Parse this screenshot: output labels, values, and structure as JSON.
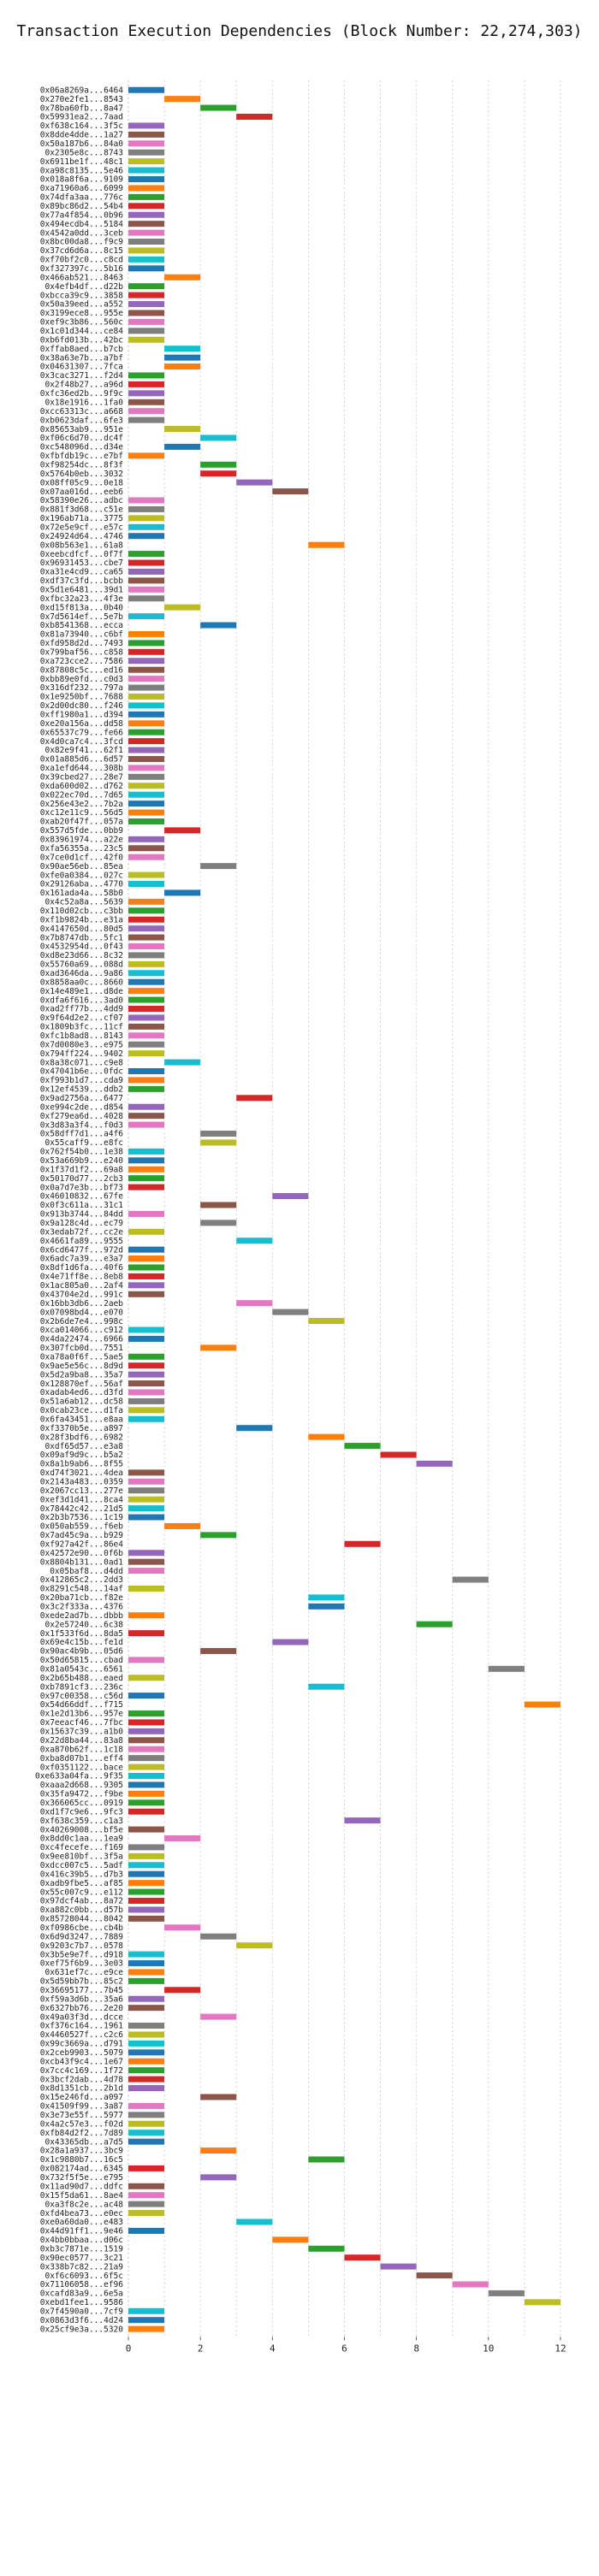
{
  "chart_data": {
    "type": "bar",
    "orientation": "horizontal-gantt",
    "title": "Transaction Execution Dependencies (Block Number: 22,274,303)",
    "xlabel": "",
    "ylabel": "",
    "xlim": [
      0,
      12.5
    ],
    "xticks": [
      0,
      2,
      4,
      6,
      8,
      10,
      12
    ],
    "grid": true,
    "palette": [
      "#1f77b4",
      "#ff7f0e",
      "#2ca02c",
      "#d62728",
      "#9467bd",
      "#8c564b",
      "#e377c2",
      "#7f7f7f",
      "#bcbd22",
      "#17becf"
    ],
    "transactions": [
      [
        "0x06a8269a...6464",
        0
      ],
      [
        "0x270e2fe1...8543",
        1
      ],
      [
        "0x78ba60fb...8a47",
        2
      ],
      [
        "0x59931ea2...7aad",
        3
      ],
      [
        "0xf638c164...3f5c",
        0
      ],
      [
        "0x8dde4dde...1a27",
        0
      ],
      [
        "0x50a187b6...84a0",
        0
      ],
      [
        "0x2305e8c...8743",
        0
      ],
      [
        "0x6911be1f...48c1",
        0
      ],
      [
        "0xa98c8135...5e46",
        0
      ],
      [
        "0x018a8f6a...9109",
        0
      ],
      [
        "0xa71960a6...6099",
        0
      ],
      [
        "0x74dfa3aa...776c",
        0
      ],
      [
        "0x89bc86d2...54b4",
        0
      ],
      [
        "0x77a4f854...0b96",
        0
      ],
      [
        "0x494ecdb4...5184",
        0
      ],
      [
        "0x4542a0dd...3ceb",
        0
      ],
      [
        "0x8bc00da8...f9c9",
        0
      ],
      [
        "0x37cd6d6a...8c15",
        0
      ],
      [
        "0xf70bf2c0...c8cd",
        0
      ],
      [
        "0xf327397c...5b16",
        0
      ],
      [
        "0x466ab521...8463",
        1
      ],
      [
        "0x4efb4df...d22b",
        0
      ],
      [
        "0xbcca39c9...3858",
        0
      ],
      [
        "0x50a39eed...a552",
        0
      ],
      [
        "0x3199ece8...955e",
        0
      ],
      [
        "0xef9c3b86...560c",
        0
      ],
      [
        "0x1c01d344...ce84",
        0
      ],
      [
        "0xb6fd013b...42bc",
        0
      ],
      [
        "0xffab8aed...b7cb",
        1
      ],
      [
        "0x38a63e7b...a7bf",
        1
      ],
      [
        "0x04631307...7fca",
        1
      ],
      [
        "0x3cac3271...f2d4",
        0
      ],
      [
        "0x2f48b27...a96d",
        0
      ],
      [
        "0xfc36ed2b...9f9c",
        0
      ],
      [
        "0x18e1916...1fa0",
        0
      ],
      [
        "0xcc63313c...a668",
        0
      ],
      [
        "0xb0623daf...6fe3",
        0
      ],
      [
        "0x85653ab9...951e",
        1
      ],
      [
        "0xf06c6d70...dc4f",
        2
      ],
      [
        "0xc548096d...d34e",
        1
      ],
      [
        "0xfbfdb19c...e7bf",
        0
      ],
      [
        "0xf98254dc...8f3f",
        2
      ],
      [
        "0x5764b0eb...3032",
        2
      ],
      [
        "0x08ff05c9...0e18",
        3
      ],
      [
        "0x07aa016d...eeb6",
        4
      ],
      [
        "0x58390e26...adbc",
        0
      ],
      [
        "0x881f3d68...c51e",
        0
      ],
      [
        "0x196ab71a...3775",
        0
      ],
      [
        "0x72e5e9cf...e57c",
        0
      ],
      [
        "0x24924d64...4746",
        0
      ],
      [
        "0x08b563e1...61a8",
        5
      ],
      [
        "0xeebcdfcf...0f7f",
        0
      ],
      [
        "0x96931453...cbe7",
        0
      ],
      [
        "0xa31e4cd9...ca65",
        0
      ],
      [
        "0xdf37c3fd...bcbb",
        0
      ],
      [
        "0x5d1e6481...39d1",
        0
      ],
      [
        "0xfbc32a23...4f3e",
        0
      ],
      [
        "0xd15f813a...0b40",
        1
      ],
      [
        "0x7d5614ef...5e7b",
        0
      ],
      [
        "0xb8541368...ecca",
        2
      ],
      [
        "0x81a73940...c6bf",
        0
      ],
      [
        "0xfd958d2d...7493",
        0
      ],
      [
        "0x799baf56...c858",
        0
      ],
      [
        "0xa723cce2...7586",
        0
      ],
      [
        "0x87808c5c...ed16",
        0
      ],
      [
        "0xbb89e0fd...c0d3",
        0
      ],
      [
        "0x316df232...797a",
        0
      ],
      [
        "0x1e9250bf...7688",
        0
      ],
      [
        "0x2d00dc80...f246",
        0
      ],
      [
        "0xff1980a1...d394",
        0
      ],
      [
        "0xe20a156a...dd58",
        0
      ],
      [
        "0x65537c79...fe66",
        0
      ],
      [
        "0x4d0ca7c4...3fcd",
        0
      ],
      [
        "0x82e9f41...62f1",
        0
      ],
      [
        "0x01a885d6...6d57",
        0
      ],
      [
        "0xa1efd644...308b",
        0
      ],
      [
        "0x39cbed27...28e7",
        0
      ],
      [
        "0xda600d02...d762",
        0
      ],
      [
        "0x022ec70d...7d65",
        0
      ],
      [
        "0x256e43e2...7b2a",
        0
      ],
      [
        "0xc12e11c9...56d5",
        0
      ],
      [
        "0xab20f47f...057a",
        0
      ],
      [
        "0x557d5fde...0bb9",
        1
      ],
      [
        "0x83961974...a22e",
        0
      ],
      [
        "0xfa56355a...23c5",
        0
      ],
      [
        "0x7ce0d1cf...42f0",
        0
      ],
      [
        "0x90ae56eb...85ea",
        2
      ],
      [
        "0xfe0a0384...027c",
        0
      ],
      [
        "0x29126aba...4770",
        0
      ],
      [
        "0x161ada4a...58b0",
        1
      ],
      [
        "0x4c52a8a...5639",
        0
      ],
      [
        "0x110d02cb...c3bb",
        0
      ],
      [
        "0xf1b9824b...e31a",
        0
      ],
      [
        "0x4147650d...80d5",
        0
      ],
      [
        "0x7b8747db...5fc1",
        0
      ],
      [
        "0x4532954d...0f43",
        0
      ],
      [
        "0xd8e23d66...8c32",
        0
      ],
      [
        "0x55760a69...088d",
        0
      ],
      [
        "0xad3646da...9a86",
        0
      ],
      [
        "0x8858aa0c...8660",
        0
      ],
      [
        "0x14e489e1...d8de",
        0
      ],
      [
        "0xdfa6f616...3ad0",
        0
      ],
      [
        "0xad2ff77b...4dd9",
        0
      ],
      [
        "0x9f64d2e2...cf07",
        0
      ],
      [
        "0x1809b3fc...11cf",
        0
      ],
      [
        "0xfc1b8ad8...8143",
        0
      ],
      [
        "0x7d0080e3...e975",
        0
      ],
      [
        "0x794ff224...9402",
        0
      ],
      [
        "0x8a38c071...c9e8",
        1
      ],
      [
        "0x47041b6e...0fdc",
        0
      ],
      [
        "0xf993b1d7...cda9",
        0
      ],
      [
        "0x12ef4539...ddb2",
        0
      ],
      [
        "0x9ad2756a...6477",
        3
      ],
      [
        "0xe994c2de...d854",
        0
      ],
      [
        "0xf279ea6d...4028",
        0
      ],
      [
        "0x3d83a3f4...f0d3",
        0
      ],
      [
        "0x58dff7d1...a4f6",
        2
      ],
      [
        "0x55caff9...e8fc",
        2
      ],
      [
        "0x762f54b0...1e38",
        0
      ],
      [
        "0x53a669b9...e240",
        0
      ],
      [
        "0x1f37d1f2...69a8",
        0
      ],
      [
        "0x50170d77...2cb3",
        0
      ],
      [
        "0x0a7d7e3b...bf73",
        0
      ],
      [
        "0x46010832...67fe",
        4
      ],
      [
        "0x0f3c611a...31c1",
        2
      ],
      [
        "0x913b3744...84dd",
        0
      ],
      [
        "0x9a128c4d...ec79",
        2
      ],
      [
        "0x3edab72f...cc2e",
        0
      ],
      [
        "0x4661fa89...9555",
        3
      ],
      [
        "0x6cd6477f...972d",
        0
      ],
      [
        "0x6adc7a39...e3a7",
        0
      ],
      [
        "0x8df1d6fa...40f6",
        0
      ],
      [
        "0x4e71ff8e...8eb8",
        0
      ],
      [
        "0x1ac805a0...2af4",
        0
      ],
      [
        "0x43704e2d...991c",
        0
      ],
      [
        "0x16bb3db6...2aeb",
        3
      ],
      [
        "0x07098bd4...e070",
        4
      ],
      [
        "0x2b6de7e4...998c",
        5
      ],
      [
        "0xca014066...c912",
        0
      ],
      [
        "0x4da22474...6966",
        0
      ],
      [
        "0x307fcb0d...7551",
        2
      ],
      [
        "0xa78a0f6f...5ae5",
        0
      ],
      [
        "0x9ae5e56c...8d9d",
        0
      ],
      [
        "0x5d2a9ba8...35a7",
        0
      ],
      [
        "0x128870ef...56af",
        0
      ],
      [
        "0xadab4ed6...d3fd",
        0
      ],
      [
        "0x51a6ab12...dc58",
        0
      ],
      [
        "0x0cab23ce...d1fa",
        0
      ],
      [
        "0x6fa43451...e8aa",
        0
      ],
      [
        "0xf3370b5e...a897",
        3
      ],
      [
        "0x28f3bdf6...6982",
        5
      ],
      [
        "0xdf65d57...e3a8",
        6
      ],
      [
        "0x09af9d9c...b5a2",
        7
      ],
      [
        "0x8a1b9ab6...8f55",
        8
      ],
      [
        "0xd74f3021...4dea",
        0
      ],
      [
        "0x2143a483...0359",
        0
      ],
      [
        "0x2067cc13...277e",
        0
      ],
      [
        "0xef3d1d41...8ca4",
        0
      ],
      [
        "0x78442c42...21d5",
        0
      ],
      [
        "0x2b3b7536...1c19",
        0
      ],
      [
        "0x050ab559...f6eb",
        1
      ],
      [
        "0x7ad45c9a...b929",
        2
      ],
      [
        "0xf927a42f...86e4",
        6
      ],
      [
        "0x42572e90...0f6b",
        0
      ],
      [
        "0x8804b131...0ad1",
        0
      ],
      [
        "0x05baf8...d4dd",
        0
      ],
      [
        "0x412865c2...2dd3",
        9
      ],
      [
        "0x8291c548...14af",
        0
      ],
      [
        "0x20ba71cb...f82e",
        5
      ],
      [
        "0x3c2f333a...4376",
        5
      ],
      [
        "0xede2ad7b...dbbb",
        0
      ],
      [
        "0x2e57240...6c38",
        8
      ],
      [
        "0x1f533f6d...8da5",
        0
      ],
      [
        "0x69e4c15b...fe1d",
        4
      ],
      [
        "0x90ac4b9b...05d6",
        2
      ],
      [
        "0x50d65815...cbad",
        0
      ],
      [
        "0x81a0543c...6561",
        10
      ],
      [
        "0x2b65b488...eaed",
        0
      ],
      [
        "0xb7891cf3...236c",
        5
      ],
      [
        "0x97c00358...c56d",
        0
      ],
      [
        "0x54d66ddf...f715",
        11
      ],
      [
        "0x1e2d13b6...957e",
        0
      ],
      [
        "0x7eeacf46...7fbc",
        0
      ],
      [
        "0x15637c39...a1b0",
        0
      ],
      [
        "0x22d8ba44...83a8",
        0
      ],
      [
        "0xa870b62f...1c18",
        0
      ],
      [
        "0xba8d07b1...eff4",
        0
      ],
      [
        "0xf0351122...bace",
        0
      ],
      [
        "0xe633a04fa...9f35",
        0
      ],
      [
        "0xaaa2d668...9305",
        0
      ],
      [
        "0x35fa9472...f9be",
        0
      ],
      [
        "0x366065cc...0919",
        0
      ],
      [
        "0xd1f7c9e6...9fc3",
        0
      ],
      [
        "0xf638c359...c1a3",
        6
      ],
      [
        "0x40269008...bf5e",
        0
      ],
      [
        "0x8dd0c1aa...1ea9",
        1
      ],
      [
        "0xc4fecefe...f169",
        0
      ],
      [
        "0x9ee810bf...3f5a",
        0
      ],
      [
        "0xdcc007c5...5adf",
        0
      ],
      [
        "0x416c39b5...d7b3",
        0
      ],
      [
        "0xadb9fbe5...af85",
        0
      ],
      [
        "0x55c007c9...e112",
        0
      ],
      [
        "0x97dcf4ab...8a72",
        0
      ],
      [
        "0xa882c0bb...d57b",
        0
      ],
      [
        "0x85728044...8042",
        0
      ],
      [
        "0xf0986cbe...cb4b",
        1
      ],
      [
        "0x6d9d3247...7889",
        2
      ],
      [
        "0x9203c7b7...0578",
        3
      ],
      [
        "0x3b5e9e7f...d918",
        0
      ],
      [
        "0xef75f6b9...3e03",
        0
      ],
      [
        "0x631ef7c...e9ce",
        0
      ],
      [
        "0x5d59bb7b...85c2",
        0
      ],
      [
        "0x36695177...7b45",
        1
      ],
      [
        "0xf59a3d6b...35a6",
        0
      ],
      [
        "0x6327bb76...2e20",
        0
      ],
      [
        "0x49a03f3d...dcce",
        2
      ],
      [
        "0xf376c164...1961",
        0
      ],
      [
        "0x4460527f...c2c6",
        0
      ],
      [
        "0x99c3669a...d791",
        0
      ],
      [
        "0x2ceb9903...5079",
        0
      ],
      [
        "0xcb43f9c4...1e67",
        0
      ],
      [
        "0x7cc4c169...1f72",
        0
      ],
      [
        "0x3bcf2dab...4d78",
        0
      ],
      [
        "0x8d1351cb...2b1d",
        0
      ],
      [
        "0x15e246fd...a097",
        2
      ],
      [
        "0x41509f99...3a87",
        0
      ],
      [
        "0x3e73e55f...5977",
        0
      ],
      [
        "0x4a2c57e3...f02d",
        0
      ],
      [
        "0xfb84d2f2...7d89",
        0
      ],
      [
        "0x43365db...a7d5",
        0
      ],
      [
        "0x28a1a937...3bc9",
        2
      ],
      [
        "0x1c9880b7...16c5",
        5
      ],
      [
        "0x082174ad...6345",
        0
      ],
      [
        "0x732f5f5e...e795",
        2
      ],
      [
        "0x11ad90d7...ddfc",
        0
      ],
      [
        "0x15f5da61...8ae4",
        0
      ],
      [
        "0xa3f8c2e...ac48",
        0
      ],
      [
        "0xfd4bea73...e0ec",
        0
      ],
      [
        "0xe0a60da0...e483",
        3
      ],
      [
        "0x44d91ff1...9e46",
        0
      ],
      [
        "0x4bb0bbaa...d06c",
        4
      ],
      [
        "0xb3c7871e...1519",
        5
      ],
      [
        "0x90ec0577...3c21",
        6
      ],
      [
        "0x338b7c82...21a9",
        7
      ],
      [
        "0xf6c6093...6f5c",
        8
      ],
      [
        "0x71106058...ef96",
        9
      ],
      [
        "0xcafd83a9...6e5a",
        10
      ],
      [
        "0xebd1fee1...9586",
        11
      ],
      [
        "0x7f4590a0...7cf9",
        0
      ],
      [
        "0x0863d3f6...4d24",
        0
      ],
      [
        "0x25cf9e3a...5320",
        0
      ]
    ]
  }
}
